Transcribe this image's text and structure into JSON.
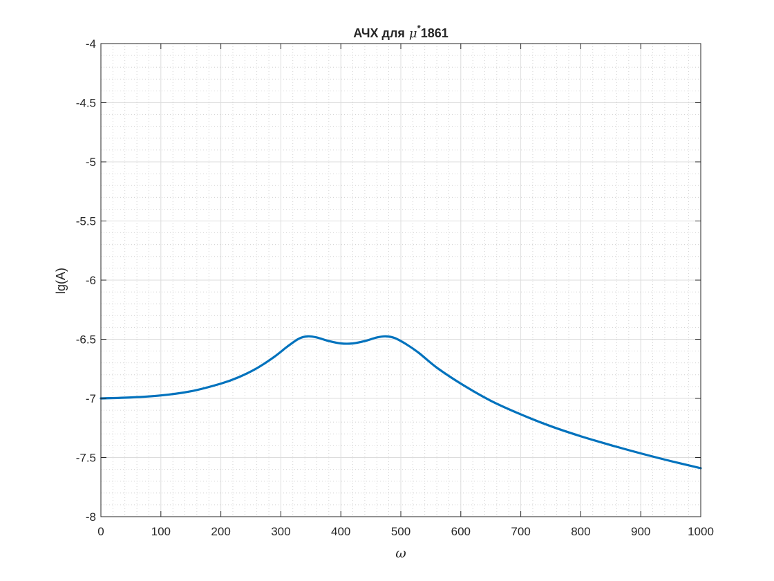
{
  "chart_data": {
    "type": "line",
    "title_prefix": "АЧХ для",
    "title_symbol": "μ",
    "title_superscript": "*",
    "title_suffix": "1861",
    "xlabel": "ω",
    "ylabel": "lg(A)",
    "xlim": [
      0,
      1000
    ],
    "ylim": [
      -8,
      -4
    ],
    "xticks": [
      0,
      100,
      200,
      300,
      400,
      500,
      600,
      700,
      800,
      900,
      1000
    ],
    "yticks": [
      -8,
      -7.5,
      -7,
      -6.5,
      -6,
      -5.5,
      -5,
      -4.5,
      -4
    ],
    "xtick_labels": [
      "0",
      "100",
      "200",
      "300",
      "400",
      "500",
      "600",
      "700",
      "800",
      "900",
      "1000"
    ],
    "ytick_labels": [
      "-8",
      "-7.5",
      "-7",
      "-6.5",
      "-6",
      "-5.5",
      "-5",
      "-4.5",
      "-4"
    ],
    "grid": true,
    "minor_grid": true,
    "series": [
      {
        "color": "#0072BD",
        "x": [
          0,
          50,
          100,
          150,
          200,
          230,
          260,
          290,
          310,
          330,
          345,
          360,
          380,
          400,
          420,
          440,
          460,
          475,
          490,
          510,
          530,
          560,
          600,
          650,
          700,
          750,
          800,
          850,
          900,
          950,
          1000
        ],
        "y": [
          -7.0,
          -6.992,
          -6.975,
          -6.94,
          -6.875,
          -6.82,
          -6.745,
          -6.645,
          -6.565,
          -6.495,
          -6.475,
          -6.485,
          -6.515,
          -6.535,
          -6.535,
          -6.515,
          -6.485,
          -6.475,
          -6.49,
          -6.545,
          -6.615,
          -6.74,
          -6.875,
          -7.02,
          -7.135,
          -7.235,
          -7.32,
          -7.395,
          -7.465,
          -7.53,
          -7.59
        ]
      }
    ]
  }
}
